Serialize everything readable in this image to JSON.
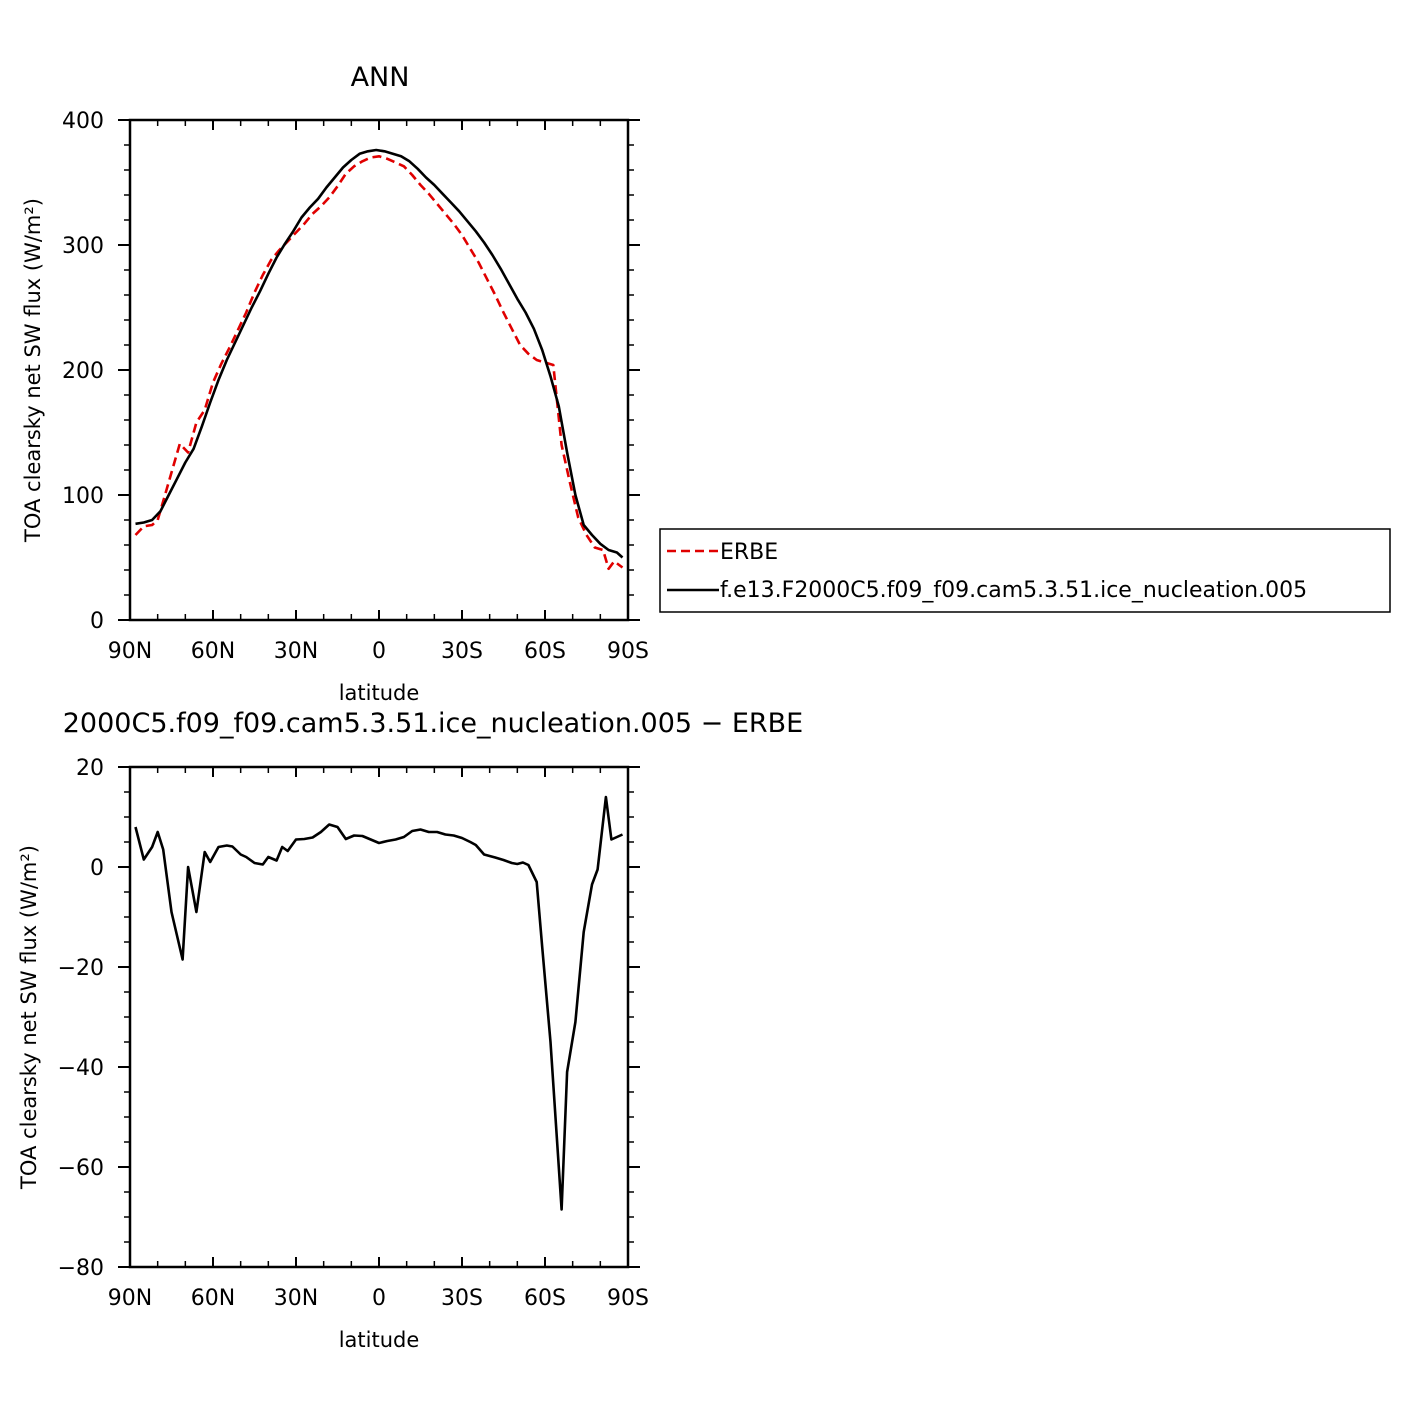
{
  "chart_data": [
    {
      "type": "line",
      "title": "ANN",
      "xlabel": "latitude",
      "ylabel": "TOA clearsky net SW flux (W/m²)",
      "xlim": [
        90,
        -90
      ],
      "ylim": [
        0,
        400
      ],
      "x_ticks": [
        90,
        60,
        30,
        0,
        -30,
        -60,
        -90
      ],
      "x_tick_labels": [
        "90N",
        "60N",
        "30N",
        "0",
        "30S",
        "60S",
        "90S"
      ],
      "y_ticks": [
        0,
        100,
        200,
        300,
        400
      ],
      "y_tick_labels": [
        "0",
        "100",
        "200",
        "300",
        "400"
      ],
      "grid": false,
      "legend_position": "right",
      "series": [
        {
          "name": "ERBE",
          "color": "#e00000",
          "dash": "dashed",
          "x": [
            88,
            85,
            82,
            80,
            78,
            75,
            72,
            69,
            66,
            63,
            60,
            57,
            54,
            51,
            48,
            45,
            42,
            39,
            36,
            33,
            30,
            27,
            24,
            21,
            18,
            15,
            12,
            9,
            6,
            3,
            0,
            -3,
            -6,
            -9,
            -12,
            -15,
            -18,
            -21,
            -24,
            -27,
            -30,
            -33,
            -36,
            -39,
            -42,
            -45,
            -48,
            -51,
            -54,
            -57,
            -60,
            -63,
            -66,
            -69,
            -72,
            -75,
            -78,
            -81,
            -83,
            -85,
            -88
          ],
          "y": [
            68,
            75,
            76,
            80,
            95,
            118,
            141,
            134,
            158,
            168,
            190,
            205,
            218,
            232,
            246,
            262,
            276,
            288,
            296,
            303,
            310,
            317,
            325,
            331,
            338,
            347,
            357,
            363,
            367,
            370,
            371,
            369,
            366,
            363,
            356,
            348,
            341,
            333,
            325,
            317,
            308,
            297,
            286,
            273,
            260,
            246,
            233,
            220,
            213,
            208,
            206,
            204,
            140,
            110,
            82,
            68,
            58,
            56,
            41,
            47,
            42
          ]
        },
        {
          "name": "f.e13.F2000C5.f09_f09.cam5.3.51.ice_nucleation.005",
          "color": "#000000",
          "dash": "solid",
          "x": [
            88,
            85,
            82,
            79,
            76,
            73,
            70,
            67,
            64,
            61,
            58,
            55,
            52,
            49,
            46,
            43,
            40,
            37,
            34,
            31,
            28,
            25,
            22,
            19,
            16,
            13,
            10,
            7,
            4,
            1,
            -2,
            -5,
            -8,
            -11,
            -14,
            -17,
            -20,
            -23,
            -26,
            -29,
            -32,
            -35,
            -38,
            -41,
            -44,
            -47,
            -50,
            -53,
            -56,
            -59,
            -62,
            -65,
            -68,
            -71,
            -74,
            -77,
            -80,
            -83,
            -86,
            -88
          ],
          "y": [
            77,
            78,
            80,
            87,
            100,
            113,
            126,
            137,
            155,
            174,
            192,
            208,
            222,
            236,
            250,
            263,
            277,
            290,
            301,
            311,
            322,
            330,
            337,
            346,
            354,
            362,
            368,
            373,
            375,
            376,
            375,
            373,
            371,
            367,
            361,
            354,
            348,
            341,
            334,
            327,
            319,
            311,
            302,
            292,
            281,
            269,
            257,
            246,
            233,
            216,
            195,
            171,
            134,
            100,
            76,
            68,
            61,
            56,
            54,
            50
          ]
        }
      ]
    },
    {
      "type": "line",
      "title": "2000C5.f09_f09.cam5.3.51.ice_nucleation.005 − ERBE",
      "xlabel": "latitude",
      "ylabel": "TOA clearsky net SW flux (W/m²)",
      "xlim": [
        90,
        -90
      ],
      "ylim": [
        -80,
        20
      ],
      "x_ticks": [
        90,
        60,
        30,
        0,
        -30,
        -60,
        -90
      ],
      "x_tick_labels": [
        "90N",
        "60N",
        "30N",
        "0",
        "30S",
        "60S",
        "90S"
      ],
      "y_ticks": [
        -80,
        -60,
        -40,
        -20,
        0,
        20
      ],
      "y_tick_labels": [
        "−80",
        "−60",
        "−40",
        "−20",
        "0",
        "20"
      ],
      "grid": false,
      "series": [
        {
          "color": "#000000",
          "dash": "solid",
          "x": [
            88,
            85,
            82,
            80,
            78,
            75,
            71,
            69,
            66,
            63,
            61,
            58,
            55,
            53,
            50,
            48,
            45,
            42,
            40,
            37,
            35,
            33,
            30,
            27,
            24,
            21,
            18,
            15,
            12,
            9,
            6,
            3,
            0,
            -3,
            -6,
            -9,
            -12,
            -15,
            -18,
            -21,
            -24,
            -27,
            -30,
            -33,
            -35,
            -38,
            -42,
            -45,
            -48,
            -50,
            -52,
            -54,
            -57,
            -59,
            -62,
            -66,
            -68,
            -71,
            -74,
            -77,
            -79,
            -82,
            -84,
            -88
          ],
          "y": [
            8,
            1.5,
            4,
            7,
            3.5,
            -9,
            -18.5,
            0,
            -9,
            3,
            1,
            4,
            4.3,
            4.1,
            2.5,
            2,
            0.8,
            0.5,
            2,
            1.3,
            4,
            3.2,
            5.5,
            5.6,
            5.9,
            7,
            8.5,
            8,
            5.6,
            6.3,
            6.2,
            5.5,
            4.8,
            5.2,
            5.5,
            6,
            7.2,
            7.5,
            7,
            7,
            6.5,
            6.3,
            5.8,
            5,
            4.4,
            2.5,
            1.9,
            1.4,
            0.8,
            0.6,
            0.9,
            0.4,
            -3,
            -16,
            -35,
            -68.5,
            -41,
            -31,
            -13,
            -3.5,
            -0.5,
            14,
            5.5,
            6.5
          ]
        }
      ]
    }
  ],
  "legend": {
    "entries": [
      {
        "label": "ERBE",
        "color": "#e00000",
        "dash": "dashed"
      },
      {
        "label": "f.e13.F2000C5.f09_f09.cam5.3.51.ice_nucleation.005",
        "color": "#000000",
        "dash": "solid"
      }
    ]
  }
}
